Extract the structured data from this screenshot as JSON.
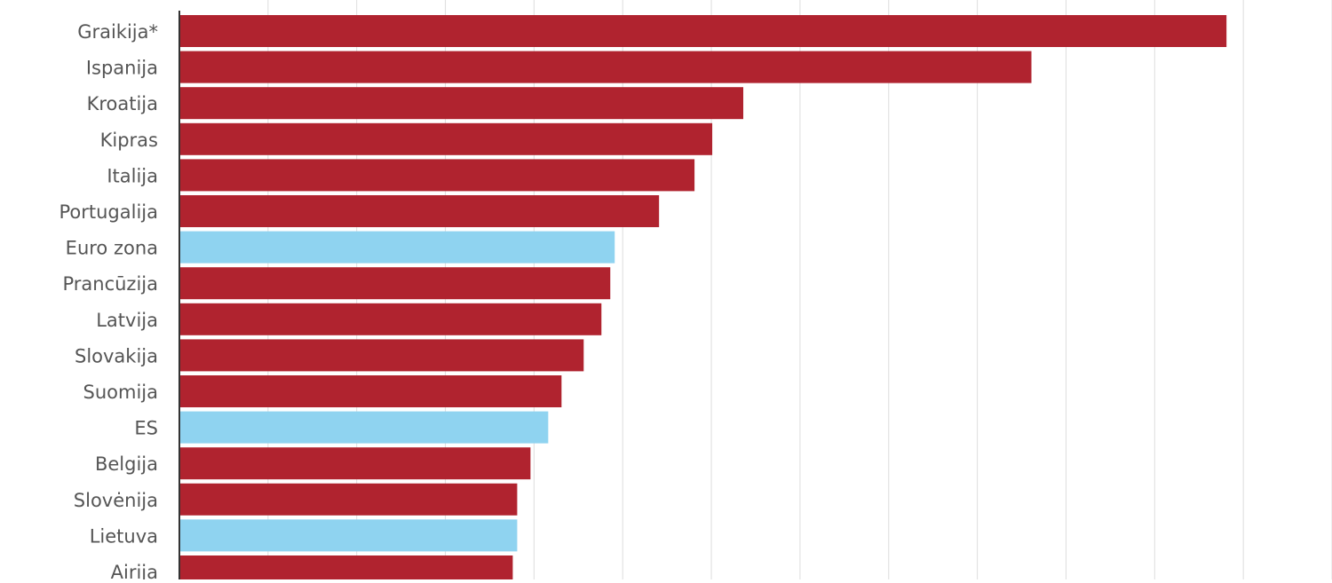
{
  "chart_data": {
    "type": "bar",
    "orientation": "horizontal",
    "title": "",
    "xlabel": "",
    "ylabel": "",
    "grid": true,
    "xlim": [
      0,
      26
    ],
    "categories": [
      "Graikija*",
      "Ispanija",
      "Kroatija",
      "Kipras",
      "Italija",
      "Portugalija",
      "Euro zona",
      "Prancūzija",
      "Latvija",
      "Slovakija",
      "Suomija",
      "ES",
      "Belgija",
      "Slovėnija",
      "Lietuva",
      "Airija"
    ],
    "values": [
      23.6,
      19.2,
      12.7,
      12.0,
      11.6,
      10.8,
      9.8,
      9.7,
      9.5,
      9.1,
      8.6,
      8.3,
      7.9,
      7.6,
      7.6,
      7.5
    ],
    "bar_colors": [
      "#b0232f",
      "#b0232f",
      "#b0232f",
      "#b0232f",
      "#b0232f",
      "#b0232f",
      "#8fd3f0",
      "#b0232f",
      "#b0232f",
      "#b0232f",
      "#b0232f",
      "#8fd3f0",
      "#b0232f",
      "#b0232f",
      "#8fd3f0",
      "#b0232f"
    ],
    "label_color": "#555555",
    "grid_color": "#dddddd",
    "axis_color": "#333333"
  }
}
